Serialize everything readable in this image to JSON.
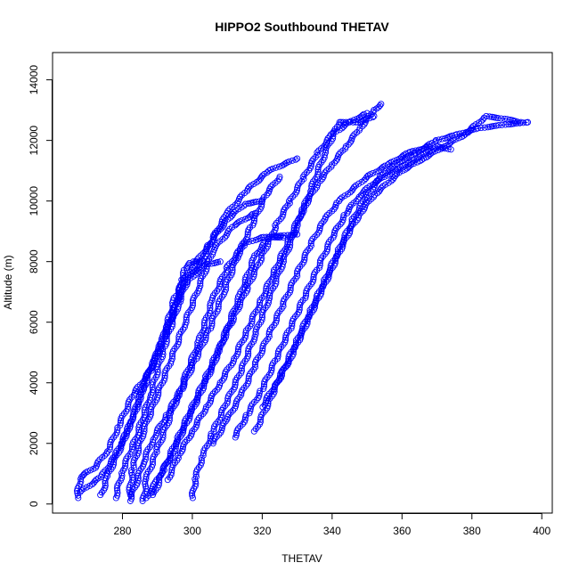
{
  "chart_data": {
    "type": "scatter",
    "title": "HIPPO2 Southbound THETAV",
    "xlabel": "THETAV",
    "ylabel": "Altitude (m)",
    "xlim": [
      260,
      403
    ],
    "ylim": [
      -300,
      14900
    ],
    "xticks": [
      280,
      300,
      320,
      340,
      360,
      380,
      400
    ],
    "yticks": [
      0,
      2000,
      4000,
      6000,
      8000,
      10000,
      12000,
      14000
    ],
    "marker": "open-circle",
    "connected": true,
    "color": "#0000ff",
    "grid": false,
    "profiles": [
      [
        [
          267,
          200
        ],
        [
          268,
          900
        ],
        [
          272,
          1200
        ],
        [
          276,
          1800
        ],
        [
          279,
          2600
        ],
        [
          283,
          3600
        ],
        [
          288,
          4400
        ],
        [
          292,
          5600
        ],
        [
          296,
          6800
        ],
        [
          298,
          7800
        ],
        [
          300,
          8000
        ],
        [
          303,
          8000
        ]
      ],
      [
        [
          268,
          400
        ],
        [
          274,
          900
        ],
        [
          278,
          1600
        ],
        [
          283,
          2800
        ],
        [
          287,
          4200
        ],
        [
          291,
          5200
        ],
        [
          295,
          6400
        ],
        [
          297,
          7400
        ],
        [
          302,
          7800
        ],
        [
          306,
          8800
        ],
        [
          310,
          9600
        ],
        [
          316,
          10400
        ],
        [
          322,
          11000
        ],
        [
          330,
          11400
        ]
      ],
      [
        [
          274,
          300
        ],
        [
          276,
          1000
        ],
        [
          280,
          2000
        ],
        [
          284,
          3200
        ],
        [
          288,
          4400
        ],
        [
          292,
          5600
        ],
        [
          295,
          6800
        ],
        [
          299,
          7400
        ],
        [
          304,
          7900
        ],
        [
          308,
          8000
        ]
      ],
      [
        [
          278,
          200
        ],
        [
          280,
          1100
        ],
        [
          284,
          2200
        ],
        [
          288,
          3600
        ],
        [
          292,
          5200
        ],
        [
          296,
          6600
        ],
        [
          300,
          7800
        ],
        [
          305,
          8600
        ],
        [
          310,
          9400
        ],
        [
          315,
          9900
        ],
        [
          320,
          10000
        ]
      ],
      [
        [
          282,
          300
        ],
        [
          283,
          1200
        ],
        [
          286,
          2400
        ],
        [
          290,
          3600
        ],
        [
          294,
          4800
        ],
        [
          298,
          6000
        ],
        [
          302,
          7200
        ],
        [
          306,
          8400
        ],
        [
          312,
          9200
        ],
        [
          318,
          9600
        ]
      ],
      [
        [
          286,
          100
        ],
        [
          287,
          900
        ],
        [
          290,
          1800
        ],
        [
          294,
          3000
        ],
        [
          298,
          4200
        ],
        [
          302,
          5400
        ],
        [
          306,
          6800
        ],
        [
          310,
          7800
        ],
        [
          315,
          8600
        ],
        [
          320,
          8800
        ],
        [
          330,
          8900
        ]
      ],
      [
        [
          287,
          200
        ],
        [
          290,
          800
        ],
        [
          294,
          1600
        ],
        [
          298,
          2600
        ],
        [
          302,
          3600
        ],
        [
          306,
          4600
        ],
        [
          310,
          5800
        ],
        [
          314,
          7000
        ],
        [
          318,
          8200
        ],
        [
          322,
          8800
        ],
        [
          326,
          8800
        ]
      ],
      [
        [
          282,
          100
        ],
        [
          284,
          700
        ],
        [
          286,
          1400
        ],
        [
          289,
          2200
        ],
        [
          293,
          3000
        ],
        [
          297,
          3800
        ],
        [
          301,
          4800
        ],
        [
          305,
          5800
        ],
        [
          309,
          7000
        ],
        [
          313,
          8200
        ],
        [
          317,
          9200
        ],
        [
          321,
          10200
        ],
        [
          325,
          10800
        ]
      ],
      [
        [
          300,
          200
        ],
        [
          301,
          900
        ],
        [
          303,
          1600
        ],
        [
          306,
          2400
        ],
        [
          310,
          3400
        ],
        [
          314,
          4400
        ],
        [
          318,
          5600
        ],
        [
          322,
          6800
        ],
        [
          326,
          8000
        ],
        [
          330,
          9200
        ],
        [
          334,
          10400
        ],
        [
          338,
          11600
        ],
        [
          342,
          12600
        ],
        [
          348,
          12600
        ],
        [
          352,
          12800
        ]
      ],
      [
        [
          289,
          300
        ],
        [
          292,
          1200
        ],
        [
          296,
          2200
        ],
        [
          300,
          3200
        ],
        [
          304,
          4200
        ],
        [
          308,
          5200
        ],
        [
          312,
          6200
        ],
        [
          316,
          7200
        ],
        [
          320,
          8200
        ],
        [
          324,
          9200
        ],
        [
          328,
          10000
        ],
        [
          332,
          10800
        ],
        [
          336,
          11600
        ],
        [
          340,
          12200
        ],
        [
          345,
          12600
        ],
        [
          350,
          12900
        ]
      ],
      [
        [
          293,
          800
        ],
        [
          296,
          1600
        ],
        [
          300,
          2400
        ],
        [
          304,
          3200
        ],
        [
          308,
          4000
        ],
        [
          312,
          4800
        ],
        [
          316,
          5800
        ],
        [
          320,
          6800
        ],
        [
          324,
          7800
        ],
        [
          328,
          8800
        ],
        [
          332,
          9800
        ],
        [
          336,
          10600
        ],
        [
          340,
          11200
        ],
        [
          344,
          11800
        ],
        [
          348,
          12400
        ],
        [
          352,
          13000
        ],
        [
          354,
          13200
        ]
      ],
      [
        [
          312,
          2200
        ],
        [
          316,
          3000
        ],
        [
          320,
          3800
        ],
        [
          324,
          4800
        ],
        [
          328,
          5800
        ],
        [
          332,
          6800
        ],
        [
          336,
          7800
        ],
        [
          340,
          8800
        ],
        [
          344,
          9600
        ],
        [
          348,
          10200
        ],
        [
          352,
          10600
        ],
        [
          358,
          11000
        ],
        [
          364,
          11400
        ],
        [
          370,
          11800
        ],
        [
          374,
          11700
        ]
      ],
      [
        [
          306,
          2000
        ],
        [
          310,
          2800
        ],
        [
          314,
          3600
        ],
        [
          318,
          4600
        ],
        [
          322,
          5600
        ],
        [
          326,
          6600
        ],
        [
          330,
          7600
        ],
        [
          334,
          8600
        ],
        [
          338,
          9400
        ],
        [
          342,
          10000
        ],
        [
          346,
          10400
        ],
        [
          350,
          10800
        ],
        [
          356,
          11200
        ],
        [
          362,
          11600
        ],
        [
          368,
          11800
        ]
      ],
      [
        [
          318,
          2400
        ],
        [
          322,
          3400
        ],
        [
          326,
          4400
        ],
        [
          330,
          5400
        ],
        [
          334,
          6400
        ],
        [
          338,
          7400
        ],
        [
          342,
          8400
        ],
        [
          346,
          9400
        ],
        [
          350,
          10200
        ],
        [
          354,
          10800
        ],
        [
          358,
          11200
        ],
        [
          364,
          11600
        ],
        [
          370,
          12000
        ],
        [
          376,
          12200
        ],
        [
          382,
          12400
        ],
        [
          388,
          12500
        ],
        [
          396,
          12600
        ]
      ],
      [
        [
          320,
          3200
        ],
        [
          324,
          4000
        ],
        [
          328,
          4800
        ],
        [
          332,
          5800
        ],
        [
          336,
          6800
        ],
        [
          340,
          7800
        ],
        [
          344,
          8800
        ],
        [
          348,
          9600
        ],
        [
          352,
          10200
        ],
        [
          356,
          10600
        ],
        [
          360,
          11000
        ],
        [
          366,
          11400
        ],
        [
          372,
          11800
        ],
        [
          378,
          12200
        ],
        [
          384,
          12800
        ],
        [
          390,
          12700
        ],
        [
          394,
          12600
        ]
      ]
    ]
  }
}
